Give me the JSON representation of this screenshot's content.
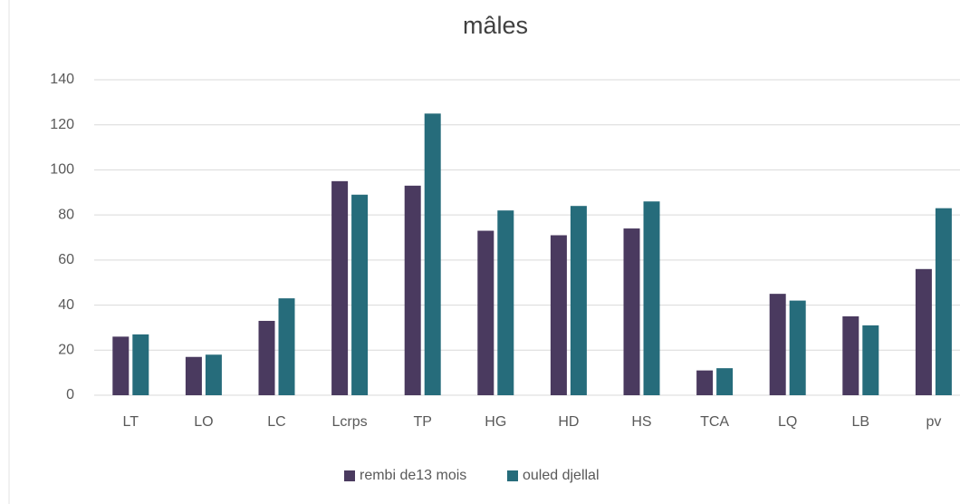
{
  "chart_data": {
    "type": "bar",
    "title": "mâles",
    "categories": [
      "LT",
      "LO",
      "LC",
      "Lcrps",
      "TP",
      "HG",
      "HD",
      "HS",
      "TCA",
      "LQ",
      "LB",
      "pv"
    ],
    "series": [
      {
        "name": "rembi de13 mois",
        "color": "#4a3a5f",
        "values": [
          26,
          17,
          33,
          95,
          93,
          73,
          71,
          74,
          11,
          45,
          35,
          56
        ]
      },
      {
        "name": "ouled djellal",
        "color": "#266c7b",
        "values": [
          27,
          18,
          43,
          89,
          125,
          82,
          84,
          86,
          12,
          42,
          31,
          83
        ]
      }
    ],
    "ylim": [
      0,
      140
    ],
    "yticks": [
      0,
      20,
      40,
      60,
      80,
      100,
      120,
      140
    ],
    "grid": true,
    "legend": "bottom"
  }
}
